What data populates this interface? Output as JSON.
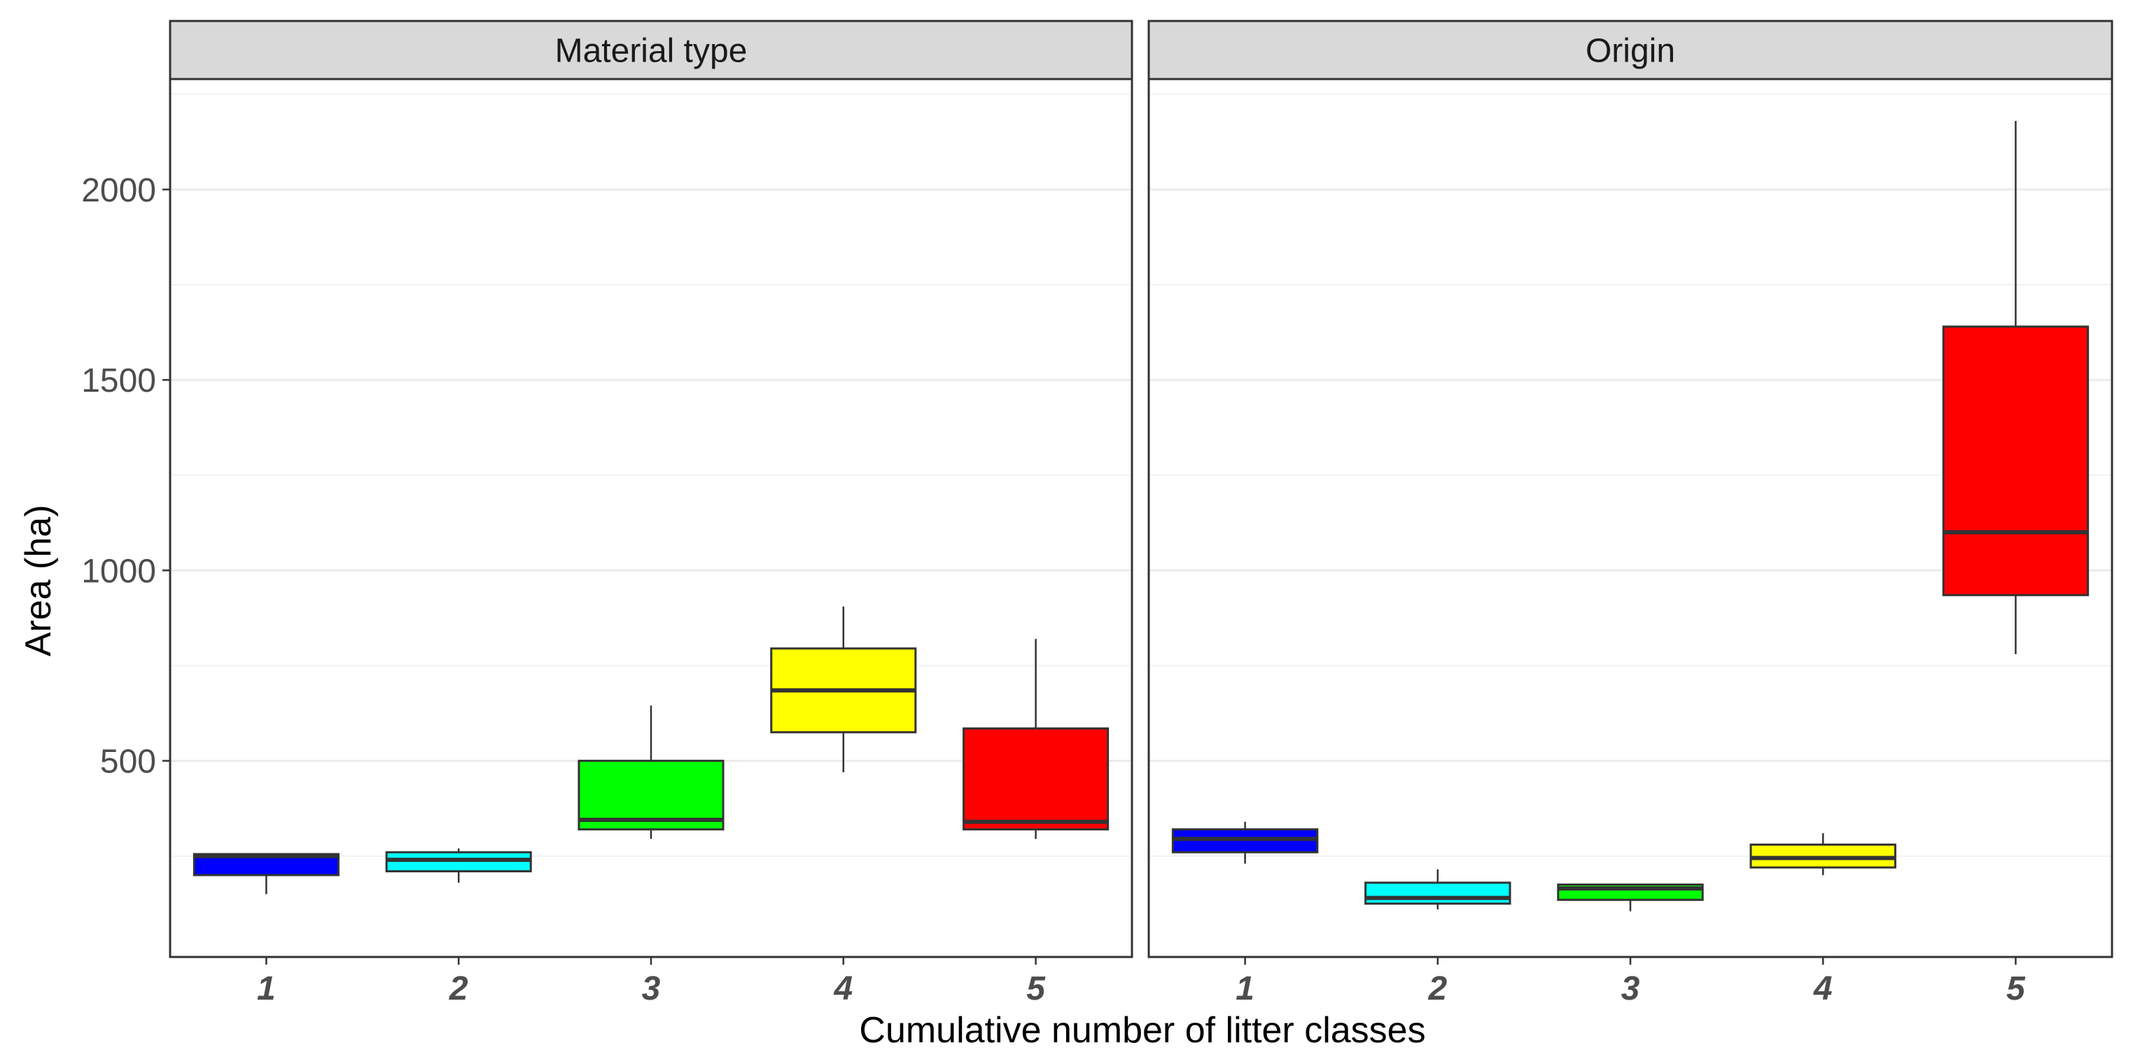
{
  "chart_data": {
    "type": "boxplot",
    "xlabel": "Cumulative number of litter classes",
    "ylabel": "Area (ha)",
    "ylim": [
      -15,
      2290
    ],
    "yticks": [
      500,
      1000,
      1500,
      2000
    ],
    "ytick_labels": [
      "500",
      "1000",
      "1500",
      "2000"
    ],
    "categories": [
      "1",
      "2",
      "3",
      "4",
      "5"
    ],
    "colors": [
      "#0000ff",
      "#00ffff",
      "#00ff00",
      "#ffff00",
      "#ff0000"
    ],
    "grid": true,
    "panels": [
      {
        "title": "Material type",
        "boxes": [
          {
            "category": "1",
            "min": 150,
            "q1": 200,
            "median": 250,
            "q3": 255,
            "max": 255
          },
          {
            "category": "2",
            "min": 180,
            "q1": 210,
            "median": 240,
            "q3": 260,
            "max": 270
          },
          {
            "category": "3",
            "min": 295,
            "q1": 320,
            "median": 345,
            "q3": 500,
            "max": 645
          },
          {
            "category": "4",
            "min": 470,
            "q1": 575,
            "median": 685,
            "q3": 795,
            "max": 905
          },
          {
            "category": "5",
            "min": 295,
            "q1": 320,
            "median": 340,
            "q3": 585,
            "max": 820
          }
        ]
      },
      {
        "title": "Origin",
        "boxes": [
          {
            "category": "1",
            "min": 230,
            "q1": 260,
            "median": 295,
            "q3": 320,
            "max": 340
          },
          {
            "category": "2",
            "min": 110,
            "q1": 125,
            "median": 140,
            "q3": 180,
            "max": 215
          },
          {
            "category": "3",
            "min": 105,
            "q1": 135,
            "median": 165,
            "q3": 175,
            "max": 175
          },
          {
            "category": "4",
            "min": 200,
            "q1": 220,
            "median": 245,
            "q3": 280,
            "max": 310
          },
          {
            "category": "5",
            "min": 780,
            "q1": 935,
            "median": 1100,
            "q3": 1640,
            "max": 2180
          }
        ]
      }
    ]
  }
}
